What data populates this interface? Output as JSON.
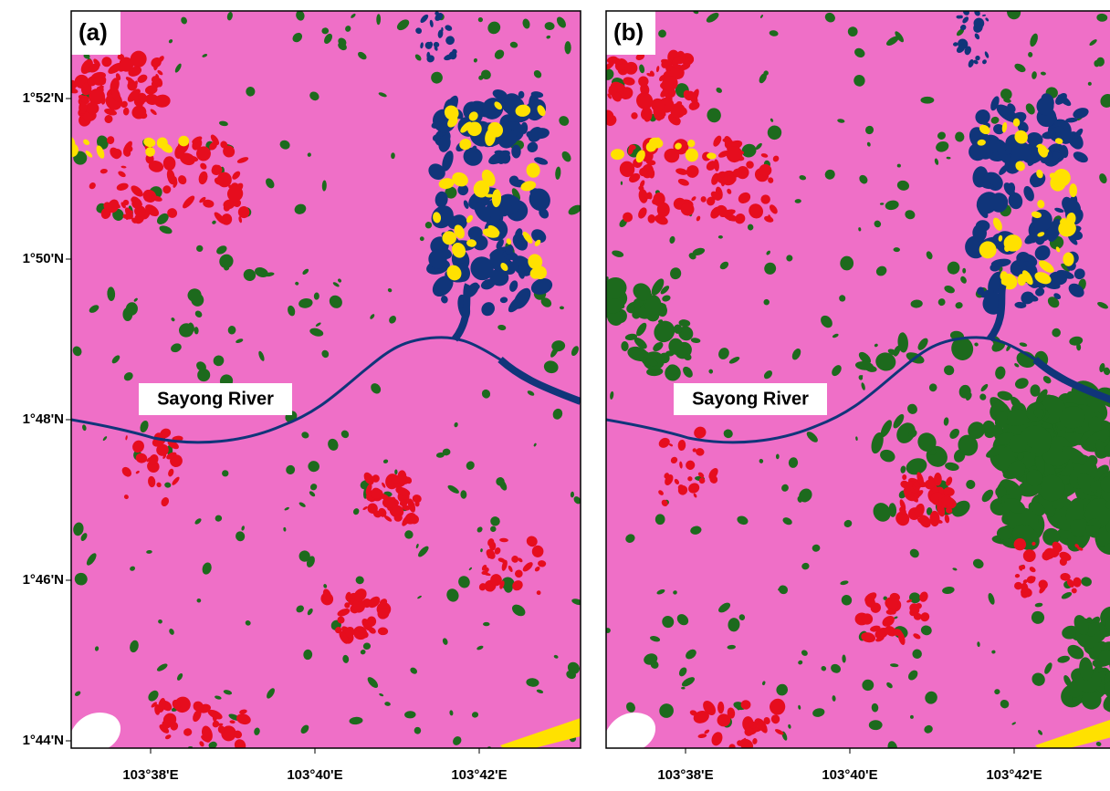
{
  "panels": [
    {
      "label": "(a)",
      "river_label": "Sayong River",
      "lon_labels": [
        "103°38'E",
        "103°40'E",
        "103°42'E"
      ]
    },
    {
      "label": "(b)",
      "river_label": "Sayong River",
      "lon_labels": [
        "103°38'E",
        "103°40'E",
        "103°42'E"
      ]
    }
  ],
  "lat_labels": [
    "1°52'N",
    "1°50'N",
    "1°48'N",
    "1°46'N",
    "1°44'N"
  ]
}
